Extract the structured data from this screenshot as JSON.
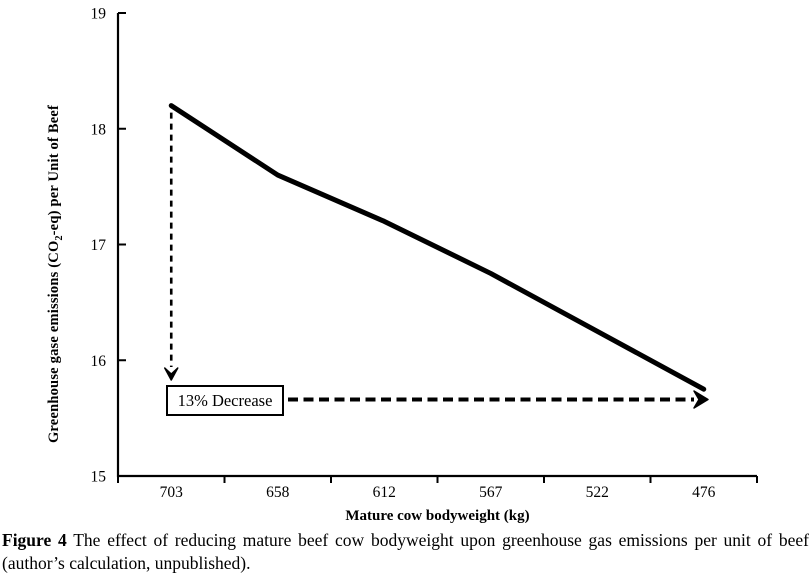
{
  "page": {
    "background": "#ffffff",
    "text_color": "#000000"
  },
  "figure": {
    "caption_label": "Figure 4",
    "caption_text": " The effect of reducing mature beef cow bodyweight upon greenhouse gas emissions per unit of beef (author’s calculation, unpublished)."
  },
  "chart_data": {
    "type": "line",
    "title": "",
    "categories": [
      "703",
      "658",
      "612",
      "567",
      "522",
      "476"
    ],
    "values": [
      18.2,
      17.6,
      17.2,
      16.75,
      16.25,
      15.75
    ],
    "series_color": "#000000",
    "line_style": "solid-thick",
    "xlabel": "Mature cow bodyweight (kg)",
    "ylabel": "Greenhouse gase emissions (CO₂-eq) per Unit of Beef",
    "ylabel_parts": {
      "pre": "Greenhouse gase emissions (CO",
      "sub": "2",
      "post": "-eq) per Unit of Beef"
    },
    "ylim": [
      15,
      19
    ],
    "yticks": [
      19,
      18,
      17,
      16,
      15
    ],
    "grid": false,
    "legend": "none",
    "annotation": {
      "label": "13% Decrease",
      "style": "boxed, dashed arrow down from first point and dashed arrow right to last point"
    }
  }
}
